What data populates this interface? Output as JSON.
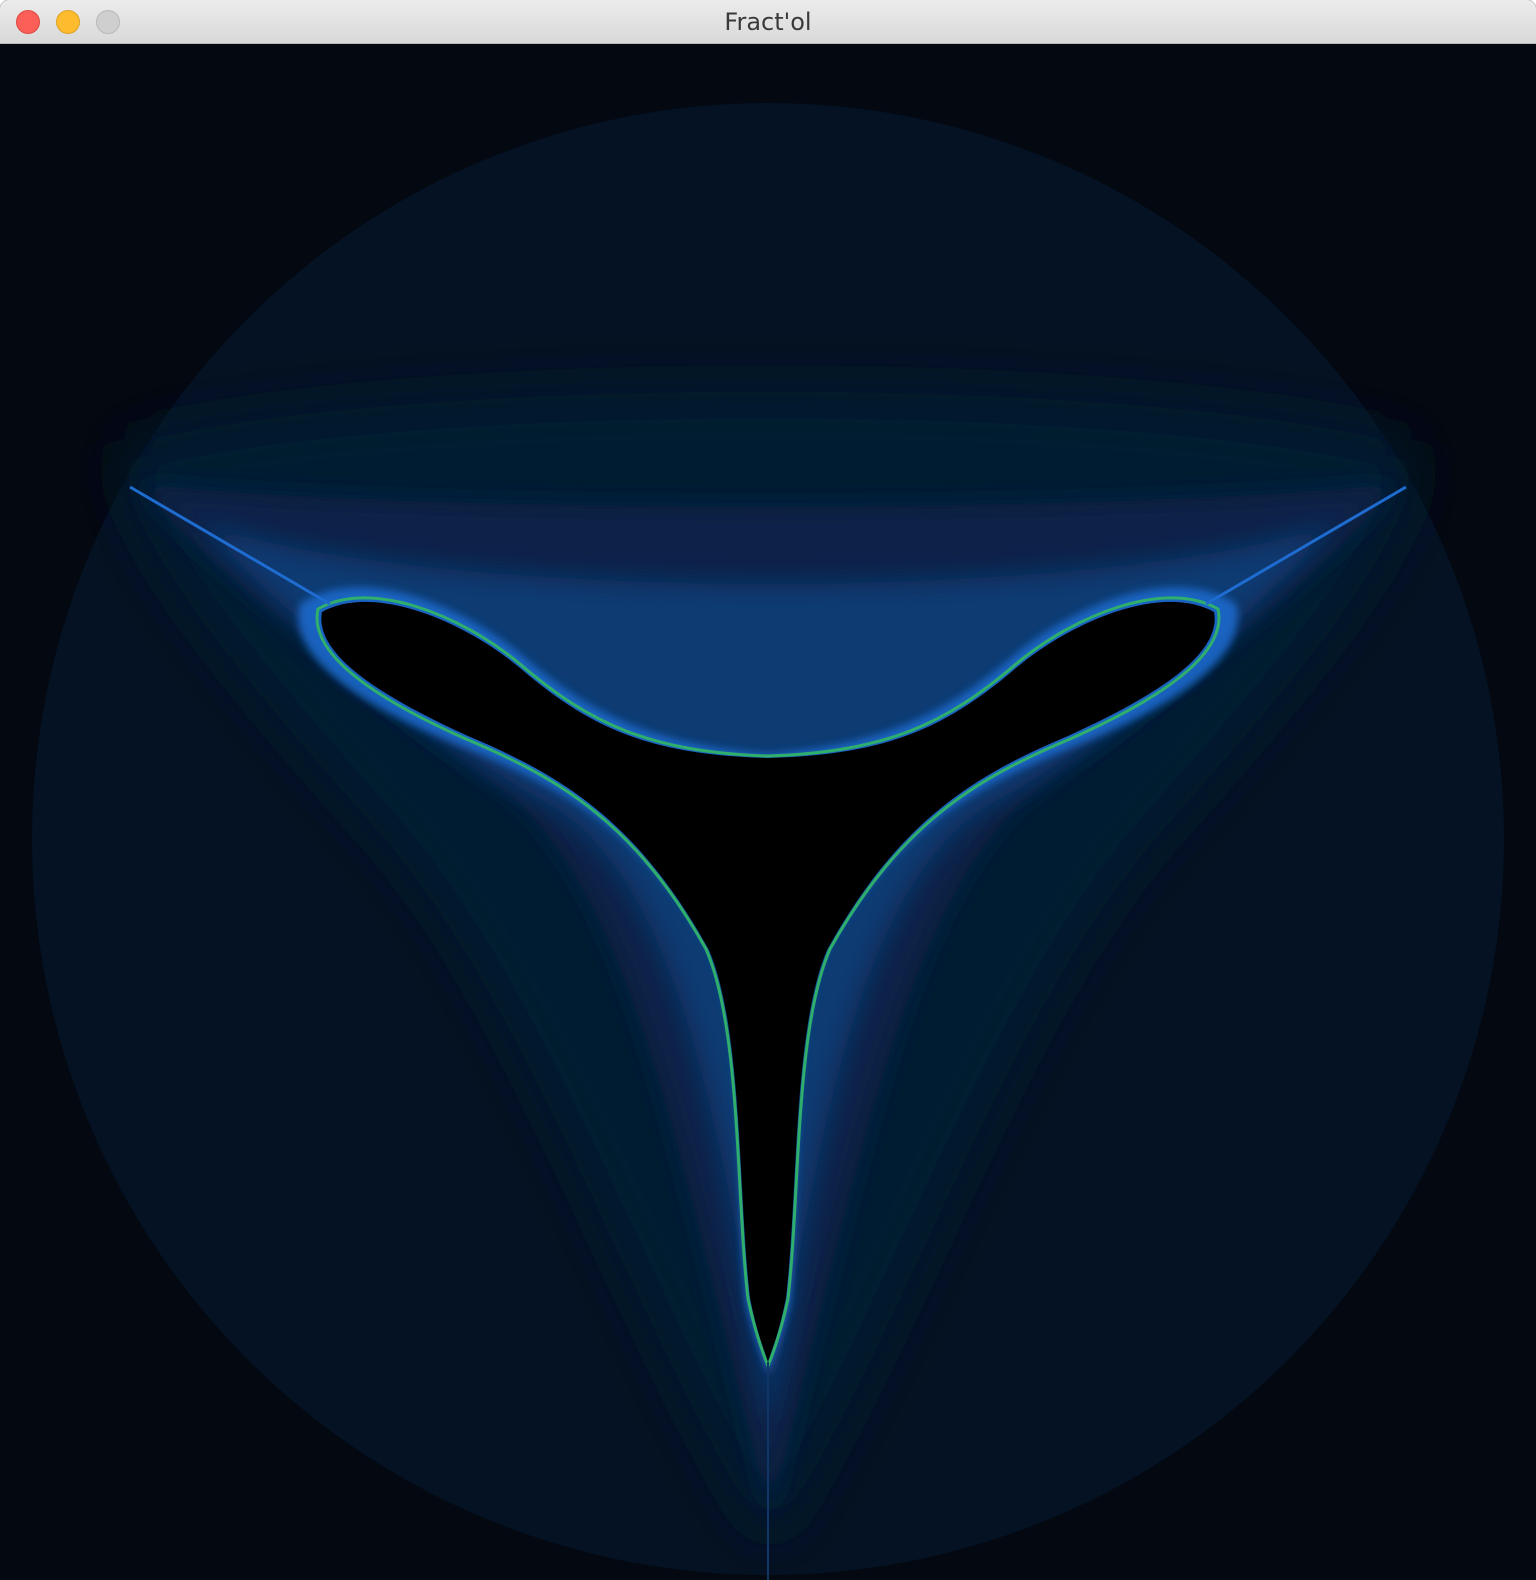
{
  "window": {
    "title": "Fract'ol"
  },
  "traffic_lights": [
    {
      "name": "close",
      "color": "#fc5f57"
    },
    {
      "name": "minimize",
      "color": "#fdbb2d"
    },
    {
      "name": "zoom",
      "color": "#d0cfcf"
    }
  ],
  "fractal": {
    "kind": "multibrot-degree-4",
    "colors": {
      "background": "#030811",
      "outer_glow": "#061427",
      "mid_glow": "#0a2a52",
      "inner_glow": "#1b5fb5",
      "edge": "#2a9d6a",
      "set": "#000000"
    }
  }
}
